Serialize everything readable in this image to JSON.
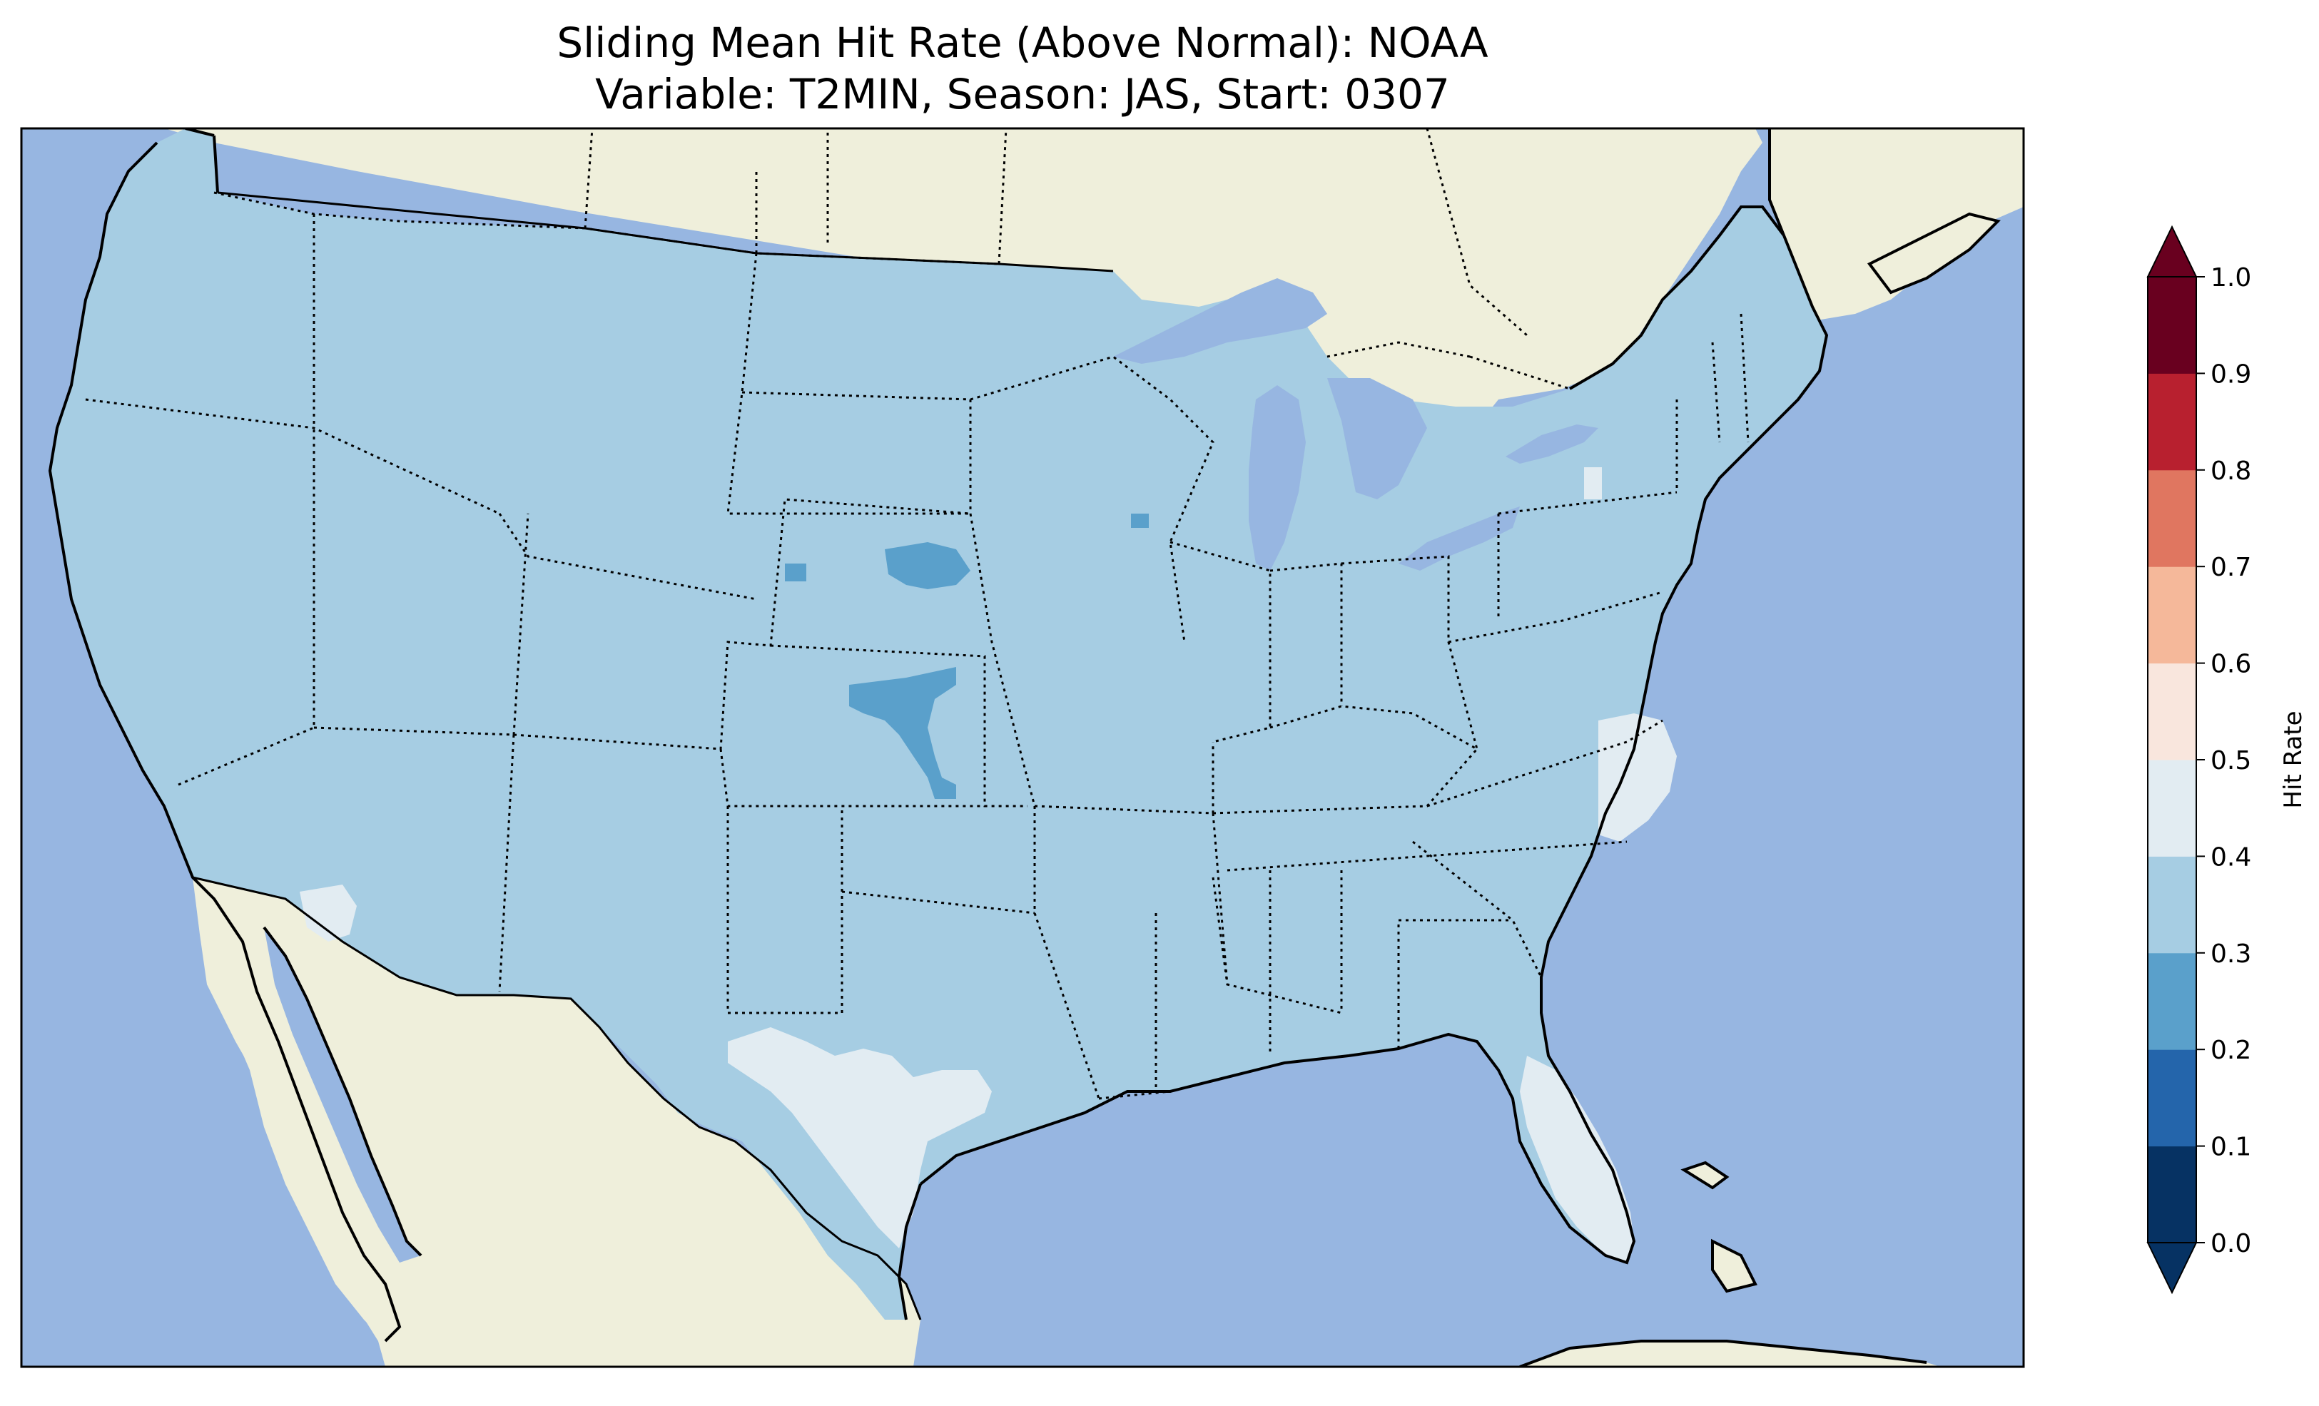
{
  "figure": {
    "title_line1": "Sliding Mean Hit Rate (Above Normal): NOAA",
    "title_line2": "Variable: T2MIN, Season: JAS, Start: 0307"
  },
  "map": {
    "region": "Contiguous United States with surrounding Canada, Mexico and Caribbean",
    "ocean_color": "#97b6e1",
    "land_color": "#efefdb",
    "field_dominant_bin": "0.3-0.4",
    "features": [
      {
        "name": "hit-rate-0.3-0.4",
        "region": "most of CONUS",
        "color": "#a6cde3"
      },
      {
        "name": "hit-rate-0.2-0.3",
        "region": "central Nebraska and Kansas",
        "color": "#5aa0cb"
      },
      {
        "name": "hit-rate-0.4-0.5",
        "region": "south Texas, Florida, eastern North Carolina, Arizona border",
        "color": "#e2ecf2"
      }
    ]
  },
  "colorbar": {
    "label": "Hit Rate",
    "extend": "both",
    "ticks": [
      "0.0",
      "0.1",
      "0.2",
      "0.3",
      "0.4",
      "0.5",
      "0.6",
      "0.7",
      "0.8",
      "0.9",
      "1.0"
    ],
    "colors": [
      "#053061",
      "#2166ac",
      "#4393c3",
      "#92c5de",
      "#d1e5f0",
      "#fddbc7",
      "#f4a582",
      "#d6604d",
      "#b2182b",
      "#67001f"
    ],
    "bins": [
      {
        "range": "0.0-0.1",
        "color": "#063263"
      },
      {
        "range": "0.1-0.2",
        "color": "#2465ab"
      },
      {
        "range": "0.2-0.3",
        "color": "#5aa0cb"
      },
      {
        "range": "0.3-0.4",
        "color": "#a6cde3"
      },
      {
        "range": "0.4-0.5",
        "color": "#e2ecf2"
      },
      {
        "range": "0.5-0.6",
        "color": "#f9e6dd"
      },
      {
        "range": "0.6-0.7",
        "color": "#f5b89a"
      },
      {
        "range": "0.7-0.8",
        "color": "#e07660"
      },
      {
        "range": "0.8-0.9",
        "color": "#b8202f"
      },
      {
        "range": "0.9-1.0",
        "color": "#69001f"
      }
    ],
    "under_color": "#063263",
    "over_color": "#69001f"
  }
}
